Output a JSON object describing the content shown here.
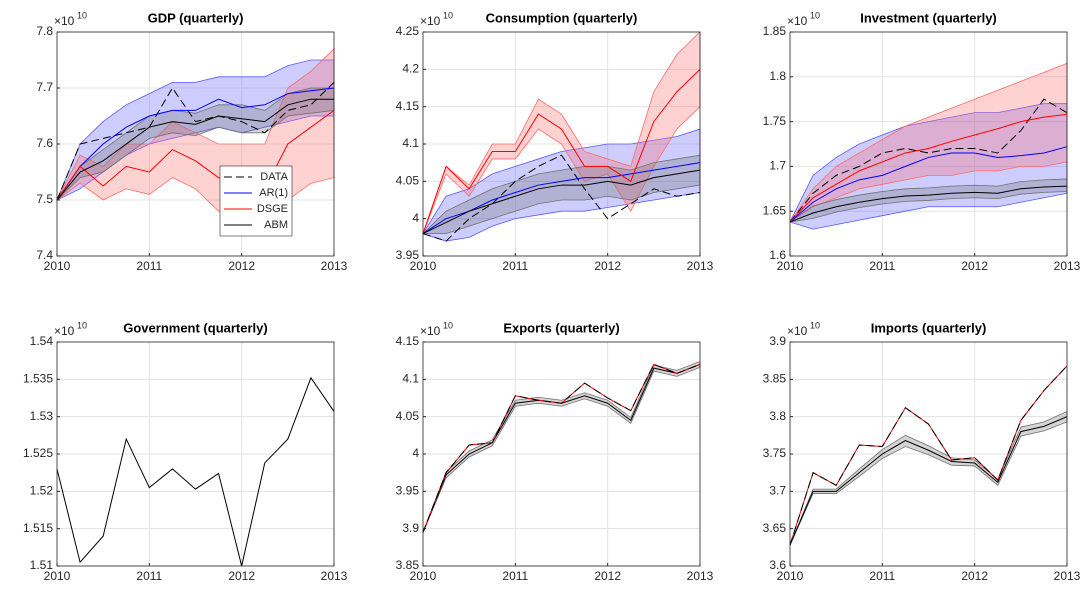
{
  "chart_data": [
    {
      "type": "line",
      "title": "GDP (quarterly)",
      "y_multiplier": "×10",
      "y_exponent": "10",
      "x": [
        2010,
        2010.25,
        2010.5,
        2010.75,
        2011,
        2011.25,
        2011.5,
        2011.75,
        2012,
        2012.25,
        2012.5,
        2012.75,
        2013
      ],
      "xlim": [
        2010,
        2013
      ],
      "xticks": [
        2010,
        2011,
        2012,
        2013
      ],
      "ylim": [
        7.4,
        7.8
      ],
      "yticks": [
        7.4,
        7.5,
        7.6,
        7.7,
        7.8
      ],
      "grid": true,
      "legend": "southeast",
      "series": [
        {
          "name": "DATA",
          "color": "#000000",
          "dash": true,
          "values": [
            7.5,
            7.6,
            7.61,
            7.62,
            7.63,
            7.7,
            7.64,
            7.65,
            7.64,
            7.62,
            7.66,
            7.67,
            7.71
          ]
        },
        {
          "name": "AR(1)",
          "color": "#0000ff",
          "band_color": "#5a5aff",
          "values": [
            7.5,
            7.56,
            7.6,
            7.63,
            7.65,
            7.66,
            7.66,
            7.68,
            7.665,
            7.67,
            7.69,
            7.695,
            7.7
          ],
          "lower": [
            7.5,
            7.52,
            7.55,
            7.58,
            7.6,
            7.61,
            7.62,
            7.63,
            7.62,
            7.63,
            7.64,
            7.65,
            7.65
          ],
          "upper": [
            7.5,
            7.6,
            7.64,
            7.67,
            7.69,
            7.71,
            7.71,
            7.72,
            7.72,
            7.72,
            7.74,
            7.75,
            7.75
          ]
        },
        {
          "name": "DSGE",
          "color": "#ff0000",
          "band_color": "#ff6a6a",
          "values": [
            7.5,
            7.56,
            7.525,
            7.56,
            7.55,
            7.59,
            7.57,
            7.54,
            7.53,
            7.52,
            7.6,
            7.63,
            7.66
          ],
          "lower": [
            7.5,
            7.53,
            7.5,
            7.52,
            7.51,
            7.54,
            7.52,
            7.48,
            7.46,
            7.44,
            7.5,
            7.53,
            7.54
          ],
          "upper": [
            7.5,
            7.58,
            7.56,
            7.6,
            7.6,
            7.64,
            7.62,
            7.6,
            7.6,
            7.6,
            7.7,
            7.73,
            7.77
          ]
        },
        {
          "name": "ABM",
          "color": "#000000",
          "band_color": "#707070",
          "values": [
            7.5,
            7.55,
            7.57,
            7.6,
            7.63,
            7.64,
            7.635,
            7.65,
            7.645,
            7.64,
            7.67,
            7.68,
            7.68
          ],
          "lower": [
            7.5,
            7.54,
            7.55,
            7.58,
            7.61,
            7.62,
            7.615,
            7.63,
            7.62,
            7.62,
            7.65,
            7.655,
            7.66
          ],
          "upper": [
            7.5,
            7.56,
            7.59,
            7.62,
            7.65,
            7.66,
            7.655,
            7.67,
            7.67,
            7.66,
            7.69,
            7.7,
            7.7
          ]
        }
      ]
    },
    {
      "type": "line",
      "title": "Consumption (quarterly)",
      "y_multiplier": "×10",
      "y_exponent": "10",
      "x": [
        2010,
        2010.25,
        2010.5,
        2010.75,
        2011,
        2011.25,
        2011.5,
        2011.75,
        2012,
        2012.25,
        2012.5,
        2012.75,
        2013
      ],
      "xlim": [
        2010,
        2013
      ],
      "xticks": [
        2010,
        2011,
        2012,
        2013
      ],
      "ylim": [
        3.95,
        4.25
      ],
      "yticks": [
        3.95,
        4,
        4.05,
        4.1,
        4.15,
        4.2,
        4.25
      ],
      "grid": true,
      "series": [
        {
          "color": "#000000",
          "dash": true,
          "values": [
            3.98,
            3.97,
            4.0,
            4.02,
            4.05,
            4.07,
            4.085,
            4.04,
            4.0,
            4.02,
            4.04,
            4.03,
            4.035
          ]
        },
        {
          "color": "#0000ff",
          "band_color": "#5a5aff",
          "values": [
            3.98,
            4.0,
            4.01,
            4.025,
            4.035,
            4.045,
            4.05,
            4.055,
            4.055,
            4.06,
            4.065,
            4.07,
            4.075
          ],
          "lower": [
            3.98,
            3.97,
            3.975,
            3.99,
            4.0,
            4.005,
            4.01,
            4.01,
            4.015,
            4.02,
            4.025,
            4.03,
            4.035
          ],
          "upper": [
            3.98,
            4.03,
            4.04,
            4.06,
            4.07,
            4.08,
            4.09,
            4.095,
            4.1,
            4.1,
            4.105,
            4.11,
            4.12
          ]
        },
        {
          "color": "#ff0000",
          "band_color": "#ff6a6a",
          "values": [
            3.98,
            4.07,
            4.04,
            4.09,
            4.09,
            4.14,
            4.12,
            4.07,
            4.07,
            4.05,
            4.13,
            4.17,
            4.2
          ],
          "lower": [
            3.98,
            4.06,
            4.03,
            4.08,
            4.08,
            4.12,
            4.1,
            4.05,
            4.06,
            4.01,
            4.07,
            4.12,
            4.15
          ],
          "upper": [
            3.98,
            4.07,
            4.045,
            4.1,
            4.1,
            4.16,
            4.14,
            4.09,
            4.08,
            4.07,
            4.17,
            4.22,
            4.25
          ]
        },
        {
          "color": "#000000",
          "band_color": "#707070",
          "values": [
            3.98,
            3.995,
            4.01,
            4.02,
            4.03,
            4.04,
            4.045,
            4.045,
            4.05,
            4.045,
            4.055,
            4.06,
            4.065
          ],
          "lower": [
            3.98,
            3.98,
            3.99,
            4.0,
            4.01,
            4.02,
            4.025,
            4.025,
            4.03,
            4.025,
            4.035,
            4.04,
            4.045
          ],
          "upper": [
            3.98,
            4.01,
            4.025,
            4.04,
            4.05,
            4.06,
            4.065,
            4.07,
            4.07,
            4.065,
            4.075,
            4.08,
            4.085
          ]
        }
      ]
    },
    {
      "type": "line",
      "title": "Investment (quarterly)",
      "y_multiplier": "×10",
      "y_exponent": "10",
      "x": [
        2010,
        2010.25,
        2010.5,
        2010.75,
        2011,
        2011.25,
        2011.5,
        2011.75,
        2012,
        2012.25,
        2012.5,
        2012.75,
        2013
      ],
      "xlim": [
        2010,
        2013
      ],
      "xticks": [
        2010,
        2011,
        2012,
        2013
      ],
      "ylim": [
        1.6,
        1.85
      ],
      "yticks": [
        1.6,
        1.65,
        1.7,
        1.75,
        1.8,
        1.85
      ],
      "grid": true,
      "series": [
        {
          "color": "#000000",
          "dash": true,
          "values": [
            1.638,
            1.67,
            1.69,
            1.7,
            1.715,
            1.72,
            1.715,
            1.72,
            1.72,
            1.715,
            1.74,
            1.775,
            1.76
          ]
        },
        {
          "color": "#0000ff",
          "band_color": "#5a5aff",
          "values": [
            1.638,
            1.66,
            1.675,
            1.685,
            1.69,
            1.7,
            1.71,
            1.715,
            1.715,
            1.71,
            1.712,
            1.715,
            1.722
          ],
          "lower": [
            1.638,
            1.63,
            1.635,
            1.64,
            1.645,
            1.65,
            1.655,
            1.655,
            1.655,
            1.655,
            1.66,
            1.665,
            1.67
          ],
          "upper": [
            1.638,
            1.69,
            1.71,
            1.725,
            1.735,
            1.745,
            1.75,
            1.755,
            1.76,
            1.76,
            1.765,
            1.77,
            1.77
          ]
        },
        {
          "color": "#ff0000",
          "band_color": "#ff6a6a",
          "values": [
            1.638,
            1.665,
            1.68,
            1.695,
            1.705,
            1.715,
            1.72,
            1.728,
            1.735,
            1.742,
            1.75,
            1.755,
            1.758
          ],
          "lower": [
            1.638,
            1.655,
            1.665,
            1.675,
            1.68,
            1.685,
            1.69,
            1.69,
            1.695,
            1.695,
            1.7,
            1.7,
            1.705
          ],
          "upper": [
            1.638,
            1.675,
            1.7,
            1.715,
            1.73,
            1.745,
            1.755,
            1.765,
            1.775,
            1.785,
            1.795,
            1.805,
            1.815
          ]
        },
        {
          "color": "#000000",
          "band_color": "#707070",
          "values": [
            1.638,
            1.648,
            1.655,
            1.66,
            1.664,
            1.667,
            1.668,
            1.67,
            1.671,
            1.67,
            1.675,
            1.677,
            1.678
          ],
          "lower": [
            1.638,
            1.642,
            1.649,
            1.654,
            1.658,
            1.661,
            1.662,
            1.664,
            1.665,
            1.664,
            1.669,
            1.671,
            1.672
          ],
          "upper": [
            1.638,
            1.656,
            1.663,
            1.668,
            1.672,
            1.675,
            1.676,
            1.678,
            1.679,
            1.678,
            1.683,
            1.685,
            1.686
          ]
        }
      ]
    },
    {
      "type": "line",
      "title": "Government (quarterly)",
      "y_multiplier": "×10",
      "y_exponent": "10",
      "x": [
        2010,
        2010.25,
        2010.5,
        2010.75,
        2011,
        2011.25,
        2011.5,
        2011.75,
        2012,
        2012.25,
        2012.5,
        2012.75,
        2013
      ],
      "xlim": [
        2010,
        2013
      ],
      "xticks": [
        2010,
        2011,
        2012,
        2013
      ],
      "ylim": [
        1.51,
        1.54
      ],
      "yticks": [
        1.51,
        1.515,
        1.52,
        1.525,
        1.53,
        1.535,
        1.54
      ],
      "grid": true,
      "series": [
        {
          "color": "#000000",
          "values": [
            1.523,
            1.5105,
            1.514,
            1.527,
            1.5205,
            1.523,
            1.5203,
            1.5224,
            1.51,
            1.5238,
            1.527,
            1.5352,
            1.5307
          ]
        }
      ]
    },
    {
      "type": "line",
      "title": "Exports (quarterly)",
      "y_multiplier": "×10",
      "y_exponent": "10",
      "x": [
        2010,
        2010.25,
        2010.5,
        2010.75,
        2011,
        2011.25,
        2011.5,
        2011.75,
        2012,
        2012.25,
        2012.5,
        2012.75,
        2013
      ],
      "xlim": [
        2010,
        2013
      ],
      "xticks": [
        2010,
        2011,
        2012,
        2013
      ],
      "ylim": [
        3.85,
        4.15
      ],
      "yticks": [
        3.85,
        3.9,
        3.95,
        4,
        4.05,
        4.1,
        4.15
      ],
      "grid": true,
      "series": [
        {
          "color": "#000000",
          "band_color": "#707070",
          "values": [
            3.895,
            3.972,
            4.0,
            4.015,
            4.068,
            4.072,
            4.068,
            4.078,
            4.068,
            4.045,
            4.115,
            4.108,
            4.12
          ],
          "lower": [
            3.895,
            3.968,
            3.996,
            4.011,
            4.064,
            4.068,
            4.064,
            4.074,
            4.064,
            4.041,
            4.111,
            4.104,
            4.116
          ],
          "upper": [
            3.895,
            3.976,
            4.004,
            4.019,
            4.072,
            4.076,
            4.072,
            4.082,
            4.072,
            4.049,
            4.119,
            4.112,
            4.124
          ]
        },
        {
          "color": "#ff0000",
          "values": [
            3.895,
            3.975,
            4.012,
            4.015,
            4.078,
            4.072,
            4.068,
            4.095,
            4.075,
            4.058,
            4.12,
            4.108,
            4.12
          ]
        },
        {
          "color": "#000000",
          "dash": true,
          "values": [
            3.895,
            3.975,
            4.012,
            4.015,
            4.078,
            4.072,
            4.068,
            4.095,
            4.075,
            4.058,
            4.12,
            4.108,
            4.12
          ]
        }
      ]
    },
    {
      "type": "line",
      "title": "Imports (quarterly)",
      "y_multiplier": "×10",
      "y_exponent": "10",
      "x": [
        2010,
        2010.25,
        2010.5,
        2010.75,
        2011,
        2011.25,
        2011.5,
        2011.75,
        2012,
        2012.25,
        2012.5,
        2012.75,
        2013
      ],
      "xlim": [
        2010,
        2013
      ],
      "xticks": [
        2010,
        2011,
        2012,
        2013
      ],
      "ylim": [
        3.6,
        3.9
      ],
      "yticks": [
        3.6,
        3.65,
        3.7,
        3.75,
        3.8,
        3.85,
        3.9
      ],
      "grid": true,
      "series": [
        {
          "color": "#000000",
          "band_color": "#707070",
          "values": [
            3.628,
            3.7,
            3.7,
            3.725,
            3.75,
            3.768,
            3.755,
            3.74,
            3.738,
            3.712,
            3.78,
            3.787,
            3.8
          ],
          "lower": [
            3.628,
            3.697,
            3.697,
            3.72,
            3.744,
            3.76,
            3.749,
            3.735,
            3.734,
            3.708,
            3.774,
            3.781,
            3.793
          ],
          "upper": [
            3.628,
            3.703,
            3.703,
            3.73,
            3.756,
            3.775,
            3.761,
            3.745,
            3.742,
            3.716,
            3.786,
            3.793,
            3.807
          ]
        },
        {
          "color": "#ff0000",
          "values": [
            3.628,
            3.725,
            3.708,
            3.762,
            3.76,
            3.812,
            3.79,
            3.742,
            3.745,
            3.715,
            3.795,
            3.835,
            3.868
          ]
        },
        {
          "color": "#000000",
          "dash": true,
          "values": [
            3.628,
            3.725,
            3.708,
            3.762,
            3.76,
            3.812,
            3.79,
            3.742,
            3.745,
            3.715,
            3.795,
            3.835,
            3.868
          ]
        }
      ]
    }
  ]
}
